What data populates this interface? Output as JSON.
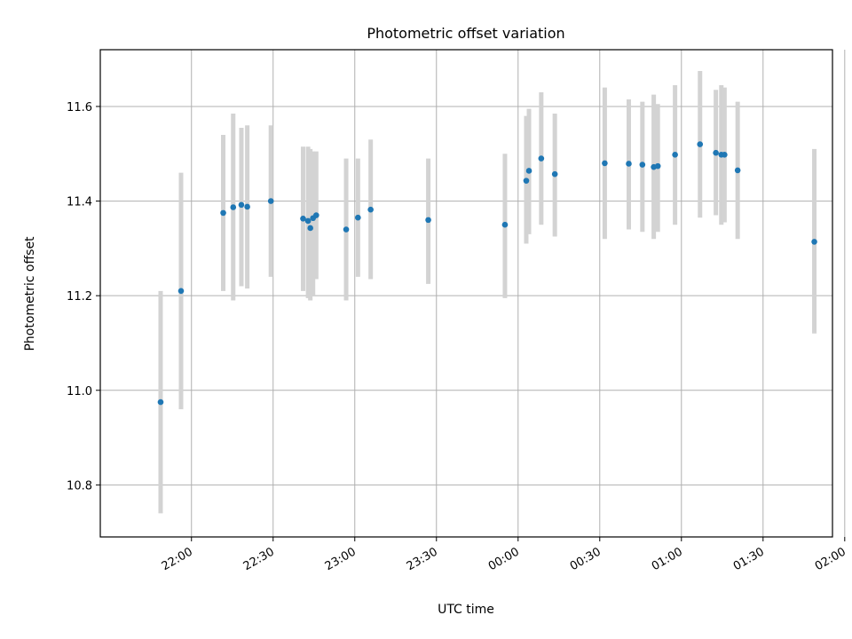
{
  "chart_data": {
    "type": "scatter",
    "title": "Photometric offset variation",
    "xlabel": "UTC time",
    "ylabel": "Photometric offset",
    "xlim_minutes_after_2130": [
      -3.5,
      265.5
    ],
    "ylim": [
      10.69,
      11.72
    ],
    "x_ticks": [
      {
        "label": "22:00",
        "value": 30
      },
      {
        "label": "22:30",
        "value": 60
      },
      {
        "label": "23:00",
        "value": 90
      },
      {
        "label": "23:30",
        "value": 120
      },
      {
        "label": "00:00",
        "value": 150
      },
      {
        "label": "00:30",
        "value": 180
      },
      {
        "label": "01:00",
        "value": 210
      },
      {
        "label": "01:30",
        "value": 240
      },
      {
        "label": "02:00",
        "value": 270
      }
    ],
    "y_ticks": [
      {
        "label": "10.8",
        "value": 10.8
      },
      {
        "label": "11.0",
        "value": 11.0
      },
      {
        "label": "11.2",
        "value": 11.2
      },
      {
        "label": "11.4",
        "value": 11.4
      },
      {
        "label": "11.6",
        "value": 11.6
      }
    ],
    "grid": true,
    "point_color": "#1f77b4",
    "errorbar_color": "#d3d3d3",
    "points": [
      {
        "t": "21:48:40",
        "y": 10.975,
        "err_low": 10.74,
        "err_high": 11.21
      },
      {
        "t": "21:56:10",
        "y": 11.21,
        "err_low": 10.96,
        "err_high": 11.46
      },
      {
        "t": "22:11:40",
        "y": 11.375,
        "err_low": 11.21,
        "err_high": 11.54
      },
      {
        "t": "22:15:20",
        "y": 11.387,
        "err_low": 11.19,
        "err_high": 11.585
      },
      {
        "t": "22:18:20",
        "y": 11.392,
        "err_low": 11.22,
        "err_high": 11.555
      },
      {
        "t": "22:20:30",
        "y": 11.388,
        "err_low": 11.215,
        "err_high": 11.56
      },
      {
        "t": "22:29:10",
        "y": 11.4,
        "err_low": 11.24,
        "err_high": 11.56
      },
      {
        "t": "22:41:00",
        "y": 11.363,
        "err_low": 11.21,
        "err_high": 11.515
      },
      {
        "t": "22:42:50",
        "y": 11.358,
        "err_low": 11.195,
        "err_high": 11.515
      },
      {
        "t": "22:43:40",
        "y": 11.343,
        "err_low": 11.19,
        "err_high": 11.51
      },
      {
        "t": "22:44:40",
        "y": 11.364,
        "err_low": 11.2,
        "err_high": 11.505
      },
      {
        "t": "22:45:50",
        "y": 11.37,
        "err_low": 11.235,
        "err_high": 11.505
      },
      {
        "t": "22:56:50",
        "y": 11.34,
        "err_low": 11.19,
        "err_high": 11.49
      },
      {
        "t": "23:01:10",
        "y": 11.365,
        "err_low": 11.24,
        "err_high": 11.49
      },
      {
        "t": "23:05:50",
        "y": 11.382,
        "err_low": 11.235,
        "err_high": 11.53
      },
      {
        "t": "23:27:00",
        "y": 11.36,
        "err_low": 11.225,
        "err_high": 11.49
      },
      {
        "t": "23:55:10",
        "y": 11.35,
        "err_low": 11.195,
        "err_high": 11.5
      },
      {
        "t": "00:03:00",
        "y": 11.443,
        "err_low": 11.31,
        "err_high": 11.58
      },
      {
        "t": "00:04:00",
        "y": 11.464,
        "err_low": 11.33,
        "err_high": 11.595
      },
      {
        "t": "00:08:30",
        "y": 11.49,
        "err_low": 11.35,
        "err_high": 11.63
      },
      {
        "t": "00:13:30",
        "y": 11.457,
        "err_low": 11.325,
        "err_high": 11.585
      },
      {
        "t": "00:31:50",
        "y": 11.48,
        "err_low": 11.32,
        "err_high": 11.64
      },
      {
        "t": "00:40:40",
        "y": 11.479,
        "err_low": 11.34,
        "err_high": 11.615
      },
      {
        "t": "00:45:40",
        "y": 11.477,
        "err_low": 11.335,
        "err_high": 11.61
      },
      {
        "t": "00:49:50",
        "y": 11.472,
        "err_low": 11.32,
        "err_high": 11.625
      },
      {
        "t": "00:51:20",
        "y": 11.474,
        "err_low": 11.335,
        "err_high": 11.605
      },
      {
        "t": "00:57:40",
        "y": 11.498,
        "err_low": 11.35,
        "err_high": 11.645
      },
      {
        "t": "01:06:50",
        "y": 11.52,
        "err_low": 11.365,
        "err_high": 11.675
      },
      {
        "t": "01:12:40",
        "y": 11.502,
        "err_low": 11.37,
        "err_high": 11.635
      },
      {
        "t": "01:14:40",
        "y": 11.498,
        "err_low": 11.35,
        "err_high": 11.645
      },
      {
        "t": "01:15:50",
        "y": 11.498,
        "err_low": 11.355,
        "err_high": 11.64
      },
      {
        "t": "01:20:40",
        "y": 11.465,
        "err_low": 11.32,
        "err_high": 11.61
      },
      {
        "t": "01:48:50",
        "y": 11.314,
        "err_low": 11.12,
        "err_high": 11.51
      }
    ]
  }
}
